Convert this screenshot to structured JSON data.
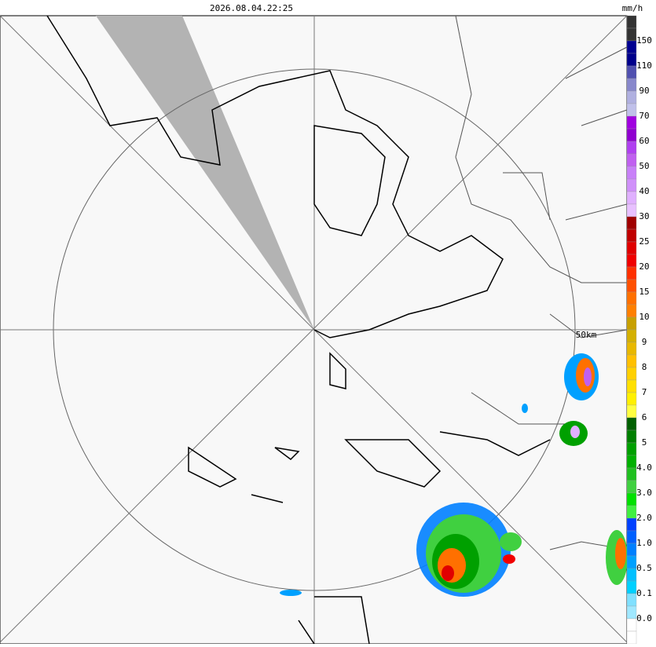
{
  "header": {
    "timestamp": "2026.08.04.22:25"
  },
  "map": {
    "range_label": "50km"
  },
  "legend": {
    "unit": "mm/h",
    "labels": [
      "150",
      "110",
      "90",
      "70",
      "60",
      "50",
      "40",
      "30",
      "25",
      "20",
      "15",
      "10",
      "9",
      "8",
      "7",
      "6",
      "5",
      "4.0",
      "3.0",
      "2.0",
      "1.0",
      "0.5",
      "0.1",
      "0.0"
    ],
    "colors": [
      "#333333",
      "#333333",
      "#000090",
      "#00008c",
      "#5050b0",
      "#8888cc",
      "#b0b0e0",
      "#c0c0ea",
      "#a000e0",
      "#9000d0",
      "#b040f0",
      "#c060f0",
      "#c880f8",
      "#d090fa",
      "#e0b0ff",
      "#e8c0ff",
      "#a00000",
      "#c00000",
      "#e00000",
      "#f00000",
      "#ff3000",
      "#ff5000",
      "#ff7000",
      "#ff8000",
      "#c8a000",
      "#d4b000",
      "#e8b800",
      "#ffc000",
      "#ffd000",
      "#ffe000",
      "#fff000",
      "#ffff40",
      "#006000",
      "#008000",
      "#00a000",
      "#00b000",
      "#20c020",
      "#40d040",
      "#00e000",
      "#40f040",
      "#0040ff",
      "#0060ff",
      "#0080ff",
      "#00a0ff",
      "#00c0ff",
      "#00d0ff",
      "#80e0ff",
      "#a0e8ff",
      "#ffffff",
      "#ffffff"
    ]
  }
}
